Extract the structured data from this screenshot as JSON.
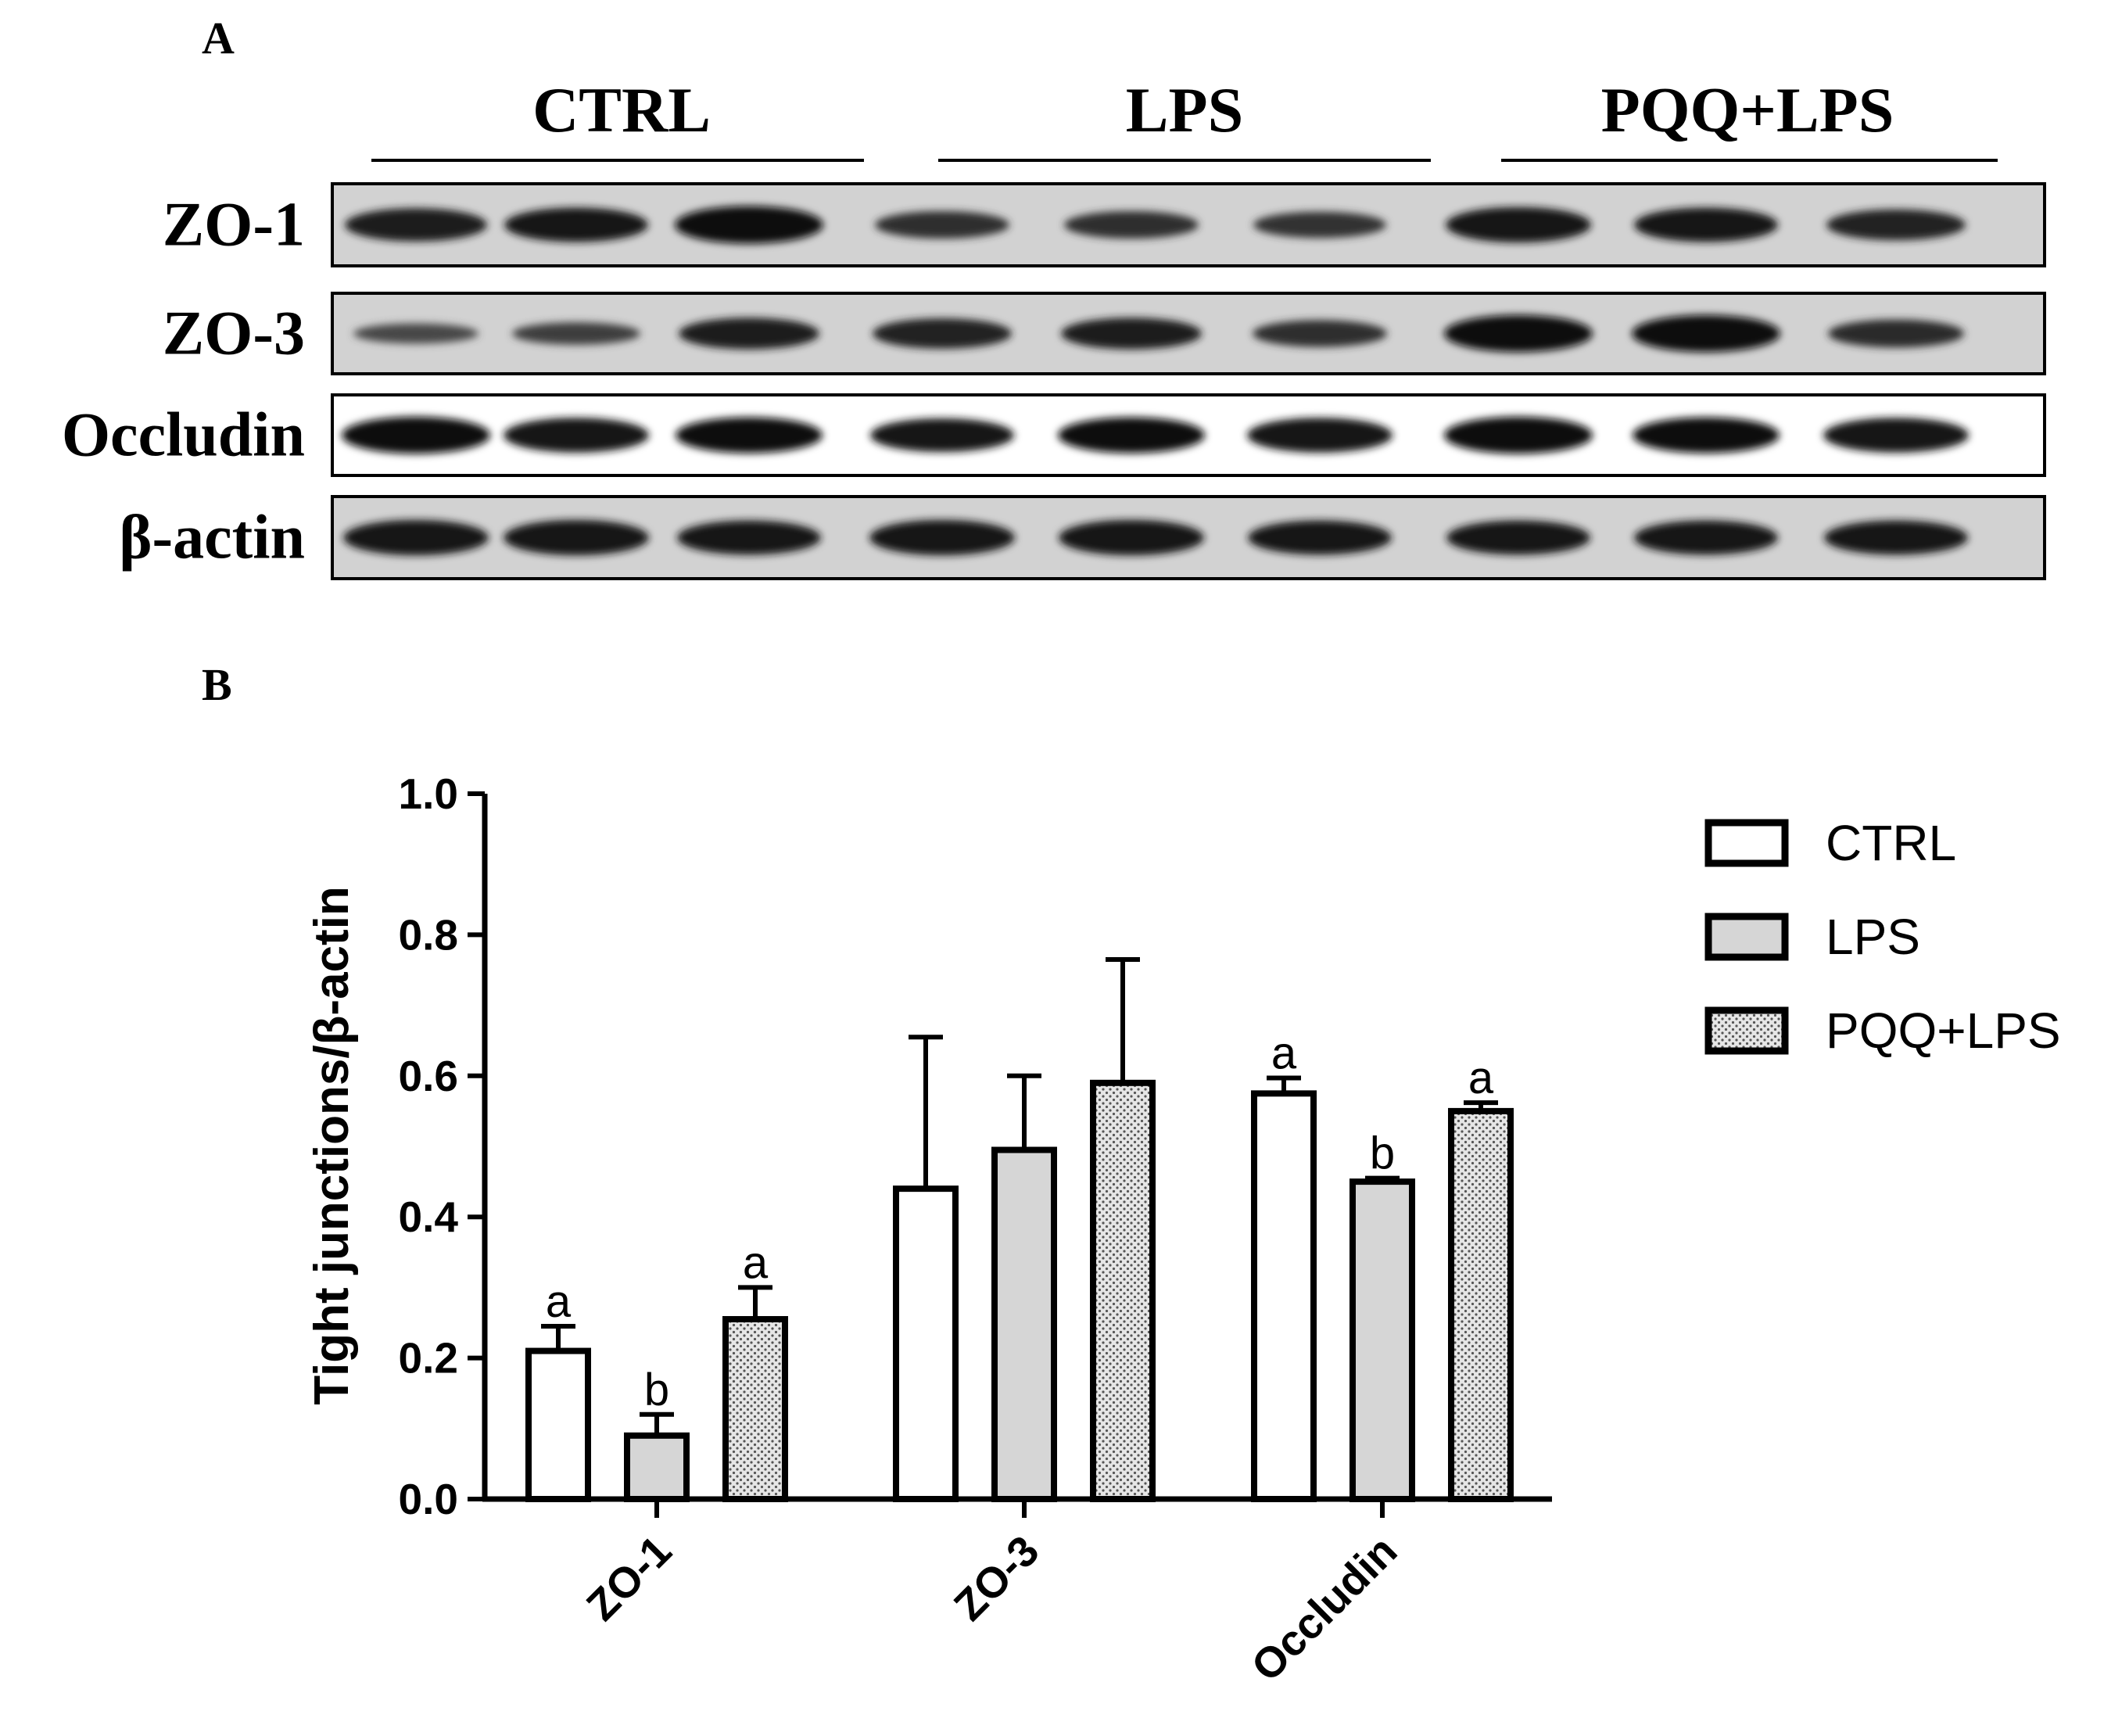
{
  "panel_a": {
    "label": "A",
    "groups": [
      "CTRL",
      "LPS",
      "PQQ+LPS"
    ],
    "rows": [
      {
        "label": "ZO-1",
        "intensity": [
          0.8,
          0.85,
          1.0,
          0.55,
          0.55,
          0.5,
          0.9,
          0.85,
          0.7
        ]
      },
      {
        "label": "ZO-3",
        "intensity": [
          0.25,
          0.35,
          0.75,
          0.7,
          0.75,
          0.55,
          1.0,
          1.0,
          0.6
        ]
      },
      {
        "label": "Occludin",
        "intensity": [
          1.0,
          0.9,
          0.95,
          0.85,
          0.95,
          0.9,
          1.0,
          0.95,
          0.9
        ]
      },
      {
        "label": "β-actin",
        "intensity": [
          0.9,
          0.9,
          0.85,
          0.9,
          0.9,
          0.85,
          0.85,
          0.85,
          0.85
        ]
      }
    ]
  },
  "panel_b": {
    "label": "B"
  },
  "chart_data": {
    "type": "bar",
    "categories": [
      "ZO-1",
      "ZO-3",
      "Occludin"
    ],
    "ylabel": "Tight junctions/β-actin",
    "xlabel": "",
    "ylim": [
      0,
      1.0
    ],
    "yticks": [
      "0.0",
      "0.2",
      "0.4",
      "0.6",
      "0.8",
      "1.0"
    ],
    "legend_position": "top-right",
    "series": [
      {
        "name": "CTRL",
        "fill": "white",
        "values": [
          0.21,
          0.44,
          0.575
        ],
        "errors": [
          0.035,
          0.215,
          0.022
        ],
        "letters": [
          "a",
          "",
          "a"
        ]
      },
      {
        "name": "LPS",
        "fill": "gray",
        "values": [
          0.09,
          0.495,
          0.45
        ],
        "errors": [
          0.03,
          0.105,
          0.005
        ],
        "letters": [
          "b",
          "",
          "b"
        ]
      },
      {
        "name": "PQQ+LPS",
        "fill": "dotted",
        "values": [
          0.255,
          0.59,
          0.55
        ],
        "errors": [
          0.045,
          0.175,
          0.012
        ],
        "letters": [
          "a",
          "",
          "a"
        ]
      }
    ]
  }
}
